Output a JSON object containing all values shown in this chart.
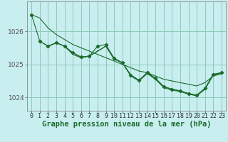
{
  "background_color": "#c8eef0",
  "plot_bg_color": "#c8eef0",
  "grid_color": "#90c8b8",
  "line_color": "#1a6b2a",
  "xlabel": "Graphe pression niveau de la mer (hPa)",
  "xlabel_fontsize": 7.5,
  "tick_fontsize": 6,
  "xlim": [
    -0.5,
    23.5
  ],
  "ylim": [
    1023.6,
    1026.9
  ],
  "yticks": [
    1024,
    1025,
    1026
  ],
  "xticks": [
    0,
    1,
    2,
    3,
    4,
    5,
    6,
    7,
    8,
    9,
    10,
    11,
    12,
    13,
    14,
    15,
    16,
    17,
    18,
    19,
    20,
    21,
    22,
    23
  ],
  "line1": {
    "x": [
      0,
      1,
      2,
      3,
      4,
      5,
      6,
      7,
      8,
      9,
      10,
      11,
      12,
      13,
      14,
      15,
      16,
      17,
      18,
      19,
      20,
      21,
      22,
      23
    ],
    "y": [
      1026.5,
      1026.4,
      1026.1,
      1025.9,
      1025.75,
      1025.6,
      1025.5,
      1025.4,
      1025.3,
      1025.2,
      1025.1,
      1025.0,
      1024.9,
      1024.8,
      1024.75,
      1024.65,
      1024.55,
      1024.5,
      1024.45,
      1024.4,
      1024.35,
      1024.45,
      1024.65,
      1024.72
    ]
  },
  "line2": {
    "x": [
      1,
      2,
      3,
      4,
      5,
      6,
      7,
      8,
      9,
      10,
      11,
      12,
      13,
      14,
      15,
      16,
      17,
      18,
      19,
      20,
      21,
      22,
      23
    ],
    "y": [
      1025.7,
      1025.55,
      1025.65,
      1025.55,
      1025.3,
      1025.2,
      1025.25,
      1025.4,
      1025.55,
      1025.15,
      1025.05,
      1024.65,
      1024.5,
      1024.72,
      1024.55,
      1024.3,
      1024.22,
      1024.18,
      1024.1,
      1024.05,
      1024.25,
      1024.68,
      1024.72
    ]
  },
  "line3": {
    "x": [
      2,
      3,
      4,
      5,
      6,
      7,
      8,
      9,
      10,
      11,
      12,
      13,
      14,
      15,
      16,
      17,
      18,
      19,
      20,
      21,
      22,
      23
    ],
    "y": [
      1025.55,
      1025.65,
      1025.55,
      1025.35,
      1025.22,
      1025.25,
      1025.4,
      1025.55,
      1025.18,
      1025.05,
      1024.68,
      1024.52,
      1024.75,
      1024.58,
      1024.33,
      1024.25,
      1024.2,
      1024.12,
      1024.07,
      1024.28,
      1024.7,
      1024.75
    ]
  },
  "line_markers": {
    "x": [
      0,
      1,
      2,
      3,
      4,
      5,
      6,
      7,
      8,
      9,
      10,
      11,
      12,
      13,
      14,
      15,
      16,
      17,
      18,
      19,
      20,
      21,
      22,
      23
    ],
    "y": [
      1026.5,
      1025.7,
      1025.55,
      1025.65,
      1025.55,
      1025.35,
      1025.22,
      1025.25,
      1025.55,
      1025.6,
      1025.18,
      1025.05,
      1024.68,
      1024.52,
      1024.75,
      1024.58,
      1024.33,
      1024.25,
      1024.2,
      1024.12,
      1024.07,
      1024.28,
      1024.7,
      1024.75
    ]
  }
}
